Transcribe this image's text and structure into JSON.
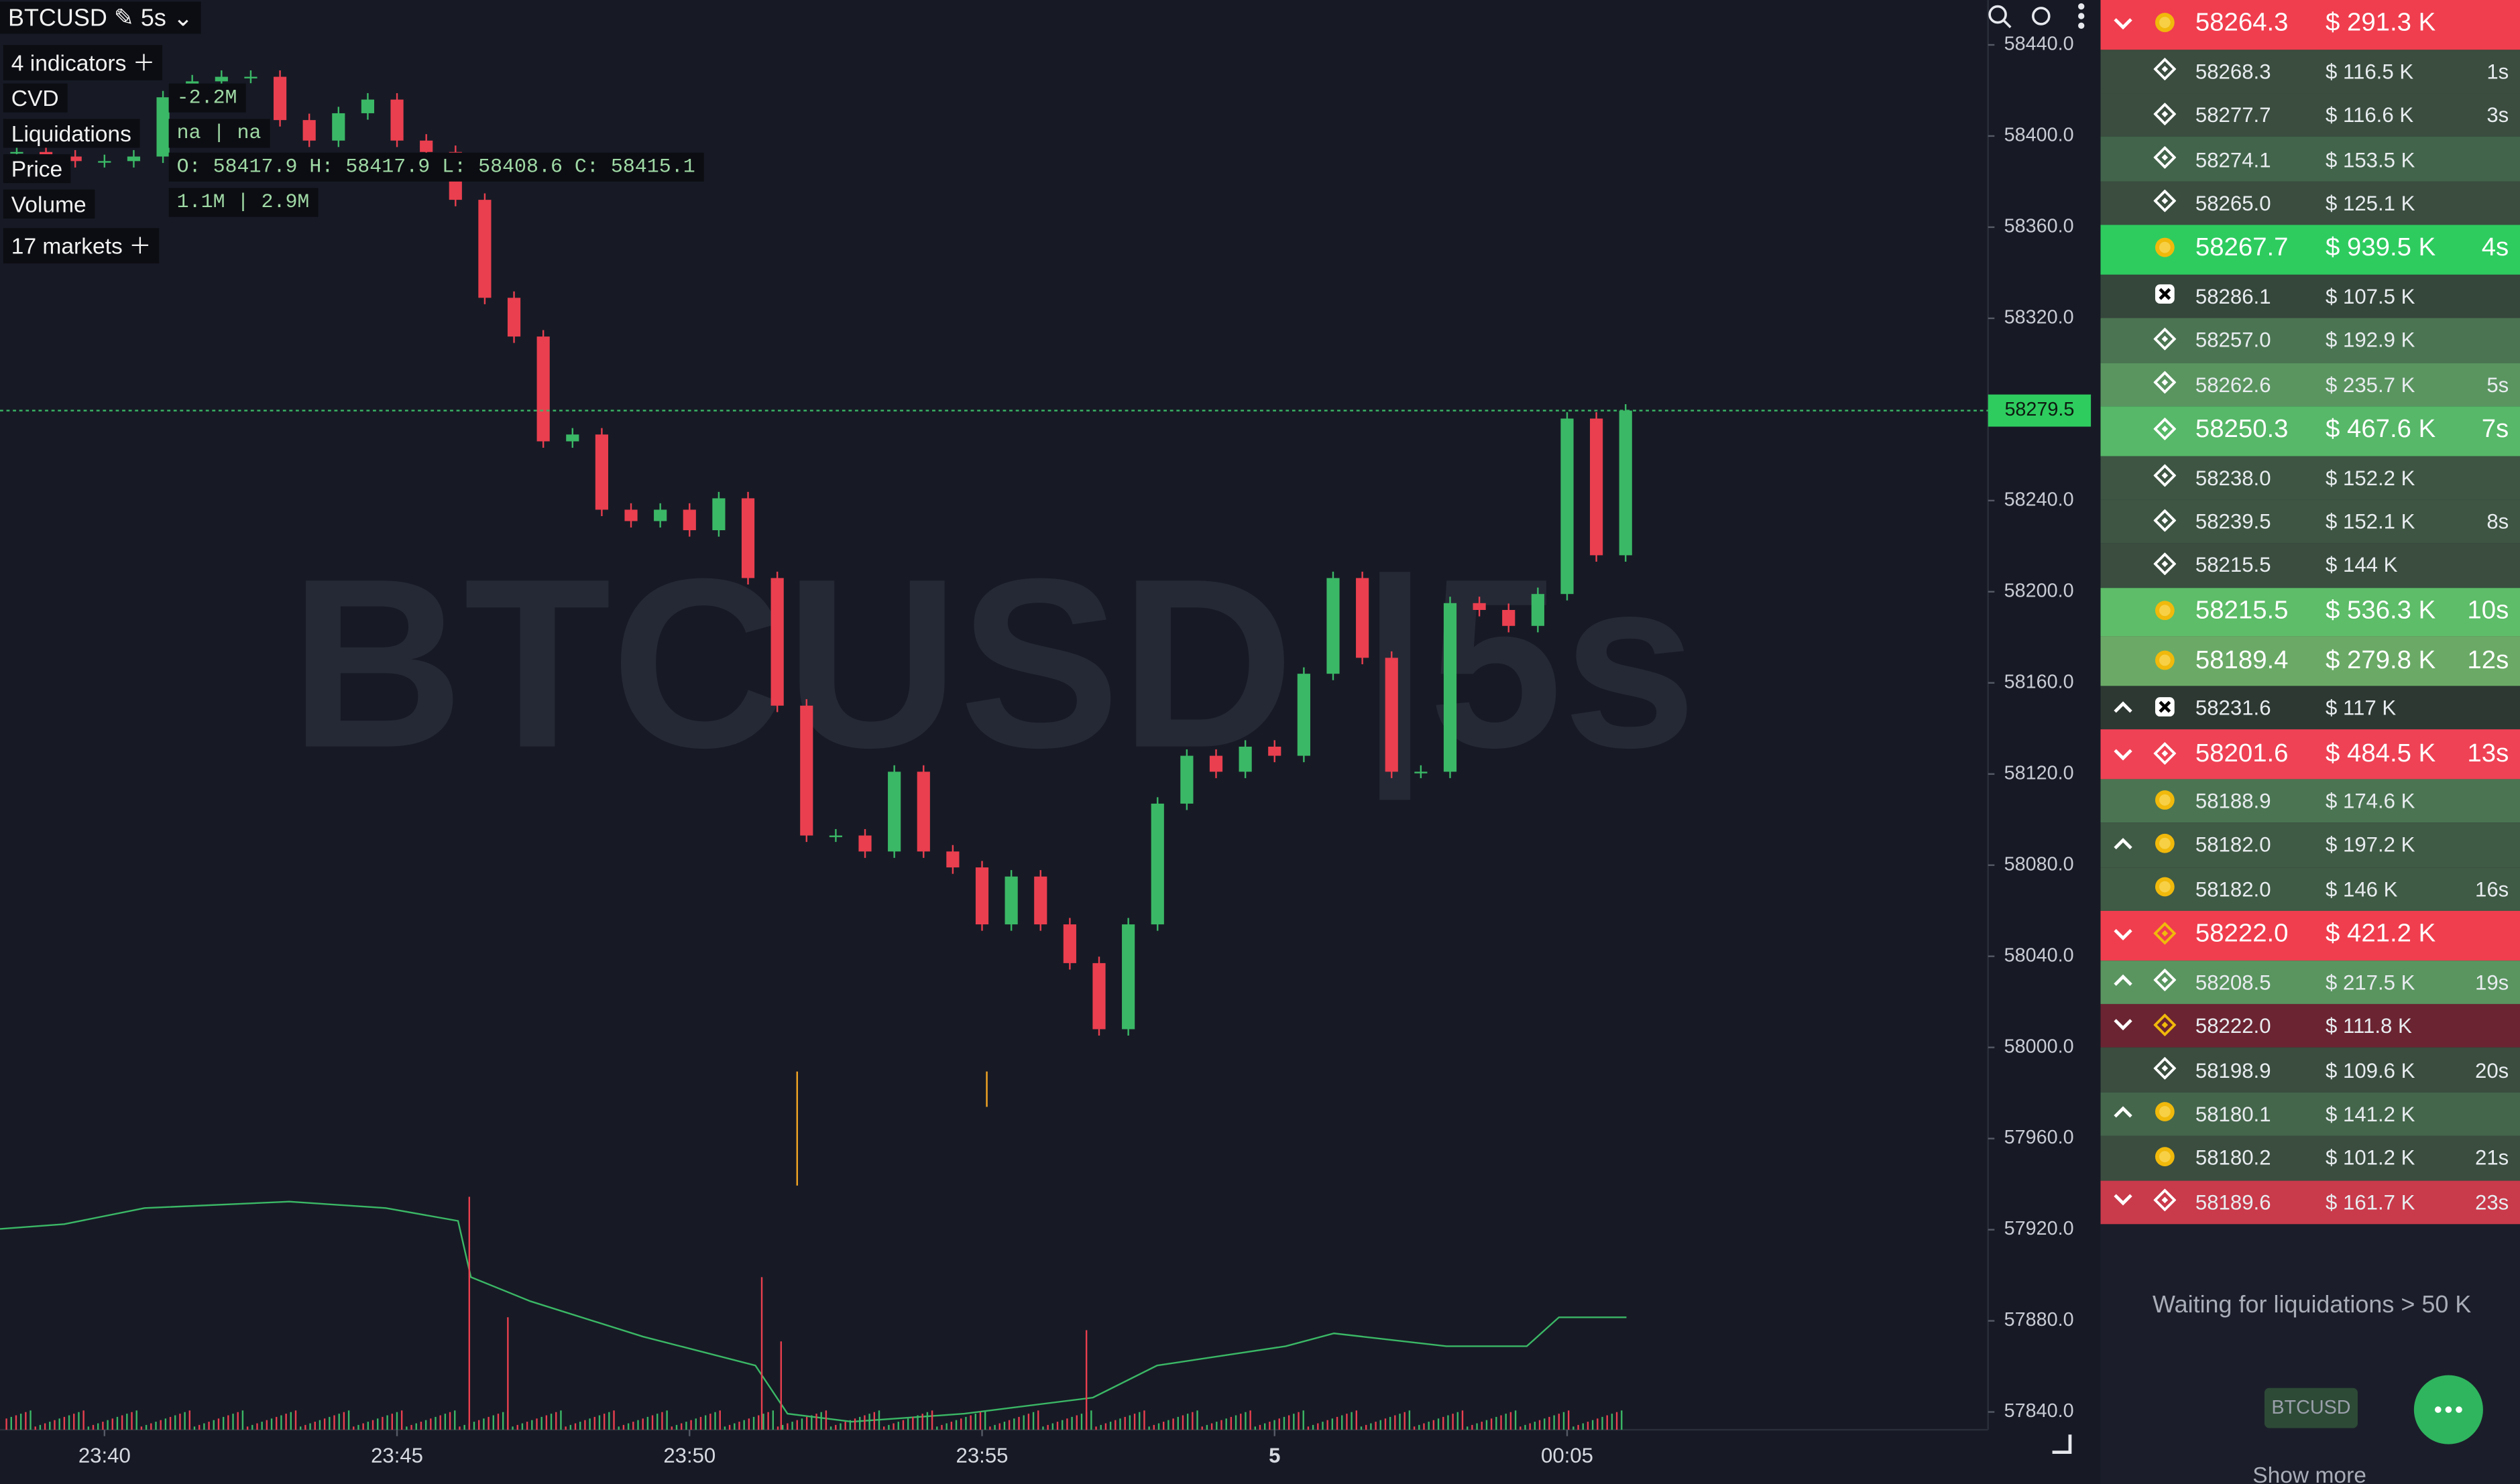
{
  "toolbar": {
    "symbol": "BTCUSD",
    "timeframe": "5s"
  },
  "legend": {
    "indicators": "4 indicators",
    "cvd_label": "CVD",
    "cvd_value": "-2.2M",
    "liq_label": "Liquidations",
    "liq_value": "na | na",
    "price_label": "Price",
    "price_value": "O: 58417.9 H: 58417.9 L: 58408.6 C: 58415.1",
    "volume_label": "Volume",
    "volume_value": "1.1M | 2.9M",
    "markets": "17 markets"
  },
  "watermark": "BTCUSD |5s",
  "chart_data": {
    "type": "candlestick",
    "x": [
      -1.5,
      -1,
      -0.5,
      0,
      0.5,
      1,
      1.5,
      2,
      2.5,
      3,
      3.5,
      4,
      4.5,
      5,
      5.5,
      6,
      6.5,
      7,
      7.5,
      8,
      8.5,
      9,
      9.5,
      10,
      10.5,
      11,
      11.5,
      12,
      12.5,
      13,
      13.5,
      14,
      14.5,
      15,
      15.5,
      16,
      16.5,
      17,
      17.5,
      18,
      18.5,
      19,
      19.5,
      20,
      20.5,
      21,
      21.5,
      22,
      22.5,
      23,
      23.5,
      24,
      24.5,
      25,
      25.5,
      26
    ],
    "values": [
      58393,
      58391,
      58389,
      58389,
      58391,
      58417,
      58424,
      58426,
      58426,
      58407,
      58398,
      58410,
      58416,
      58398,
      58393,
      58372,
      58329,
      58312,
      58266,
      58269,
      58236,
      58231,
      58236,
      58227,
      58241,
      58206,
      58150,
      58093,
      58093,
      58086,
      58121,
      58086,
      58079,
      58054,
      58075,
      58054,
      58037,
      58008,
      58054,
      58107,
      58128,
      58121,
      58132,
      58128,
      58164,
      58206,
      58171,
      58121,
      58121,
      58195,
      58192,
      58185,
      58199,
      58276,
      58216,
      58279.5
    ],
    "xlim": [
      -1.786,
      32.14
    ],
    "ylim": [
      57832.2,
      58459.7
    ],
    "xticks": [
      {
        "value": 0,
        "label": "23:40"
      },
      {
        "value": 5,
        "label": "23:45"
      },
      {
        "value": 10,
        "label": "23:50"
      },
      {
        "value": 15,
        "label": "23:55"
      },
      {
        "value": 20,
        "label": "5"
      },
      {
        "value": 25,
        "label": "00:05"
      }
    ],
    "yticks": [
      {
        "value": 58440,
        "label": "58440.0"
      },
      {
        "value": 58400,
        "label": "58400.0"
      },
      {
        "value": 58360,
        "label": "58360.0"
      },
      {
        "value": 58320,
        "label": "58320.0"
      },
      {
        "value": 58280,
        "label": "58280.0"
      },
      {
        "value": 58240,
        "label": "58240.0"
      },
      {
        "value": 58200,
        "label": "58200.0"
      },
      {
        "value": 58160,
        "label": "58160.0"
      },
      {
        "value": 58120,
        "label": "58120.0"
      },
      {
        "value": 58080,
        "label": "58080.0"
      },
      {
        "value": 58040,
        "label": "58040.0"
      },
      {
        "value": 58000,
        "label": "58000.0"
      },
      {
        "value": 57960,
        "label": "57960.0"
      },
      {
        "value": 57920,
        "label": "57920.0"
      },
      {
        "value": 57880,
        "label": "57880.0"
      },
      {
        "value": 57840,
        "label": "57840.0"
      }
    ],
    "last_price": 58279.5,
    "up_color": "#3bb866",
    "down_color": "#ea3f4f"
  },
  "trades": {
    "rows": [
      {
        "price": "58264.3",
        "amount": "$ 291.3 K",
        "color": "#f03e4e"
      },
      {
        "price": "58268.3",
        "amount": "$ 116.5 K",
        "age": "1s",
        "color": "#3a4d3f"
      },
      {
        "price": "58277.7",
        "amount": "$ 116.6 K",
        "age": "3s",
        "color": "#3a4d3f"
      },
      {
        "price": "58274.1",
        "amount": "$ 153.5 K",
        "color": "#41644a"
      },
      {
        "price": "58265.0",
        "amount": "$ 125.1 K",
        "color": "#3a4d3f"
      },
      {
        "price": "58267.7",
        "amount": "$ 939.5 K",
        "age": "4s",
        "color": "#2ecc5f"
      },
      {
        "price": "58286.1",
        "amount": "$ 107.5 K",
        "color": "#35463b"
      },
      {
        "price": "58257.0",
        "amount": "$ 192.9 K",
        "color": "#4b7552"
      },
      {
        "price": "58262.6",
        "amount": "$ 235.7 K",
        "age": "5s",
        "color": "#5a9560"
      },
      {
        "price": "58250.3",
        "amount": "$ 467.6 K",
        "age": "7s",
        "color": "#56b868"
      },
      {
        "price": "58238.0",
        "amount": "$ 152.2 K",
        "color": "#3d5542"
      },
      {
        "price": "58239.5",
        "amount": "$ 152.1 K",
        "age": "8s",
        "color": "#3d5542"
      },
      {
        "price": "58215.5",
        "amount": "$ 144 K",
        "color": "#3a4d3f"
      },
      {
        "price": "58215.5",
        "amount": "$ 536.3 K",
        "age": "10s",
        "color": "#5dbd68"
      },
      {
        "price": "58189.4",
        "amount": "$ 279.8 K",
        "age": "12s",
        "color": "#6aaa66"
      },
      {
        "price": "58231.6",
        "amount": "$ 117 K",
        "color": "#2d3832"
      },
      {
        "price": "58201.6",
        "amount": "$ 484.5 K",
        "age": "13s",
        "color": "#ef4255"
      },
      {
        "price": "58188.9",
        "amount": "$ 174.6 K",
        "color": "#4b7552"
      },
      {
        "price": "58182.0",
        "amount": "$ 197.2 K",
        "color": "#3f5a45"
      },
      {
        "price": "58182.0",
        "amount": "$ 146 K",
        "age": "16s",
        "color": "#3f5a45"
      },
      {
        "price": "58222.0",
        "amount": "$ 421.2 K",
        "color": "#f03e4e"
      },
      {
        "price": "58208.5",
        "amount": "$ 217.5 K",
        "age": "19s",
        "color": "#5a9560"
      },
      {
        "price": "58222.0",
        "amount": "$ 111.8 K",
        "color": "#6b2432"
      },
      {
        "price": "58198.9",
        "amount": "$ 109.6 K",
        "age": "20s",
        "color": "#3a4d3f"
      },
      {
        "price": "58180.1",
        "amount": "$ 141.2 K",
        "color": "#44664b"
      },
      {
        "price": "58180.2",
        "amount": "$ 101.2 K",
        "age": "21s",
        "color": "#3a4d3f"
      },
      {
        "price": "58189.6",
        "amount": "$ 161.7 K",
        "age": "23s",
        "color": "#c93a4b"
      }
    ]
  },
  "panel": {
    "waiting": "Waiting for liquidations > 50 K",
    "badge": "BTCUSD",
    "show_more": "Show more"
  }
}
